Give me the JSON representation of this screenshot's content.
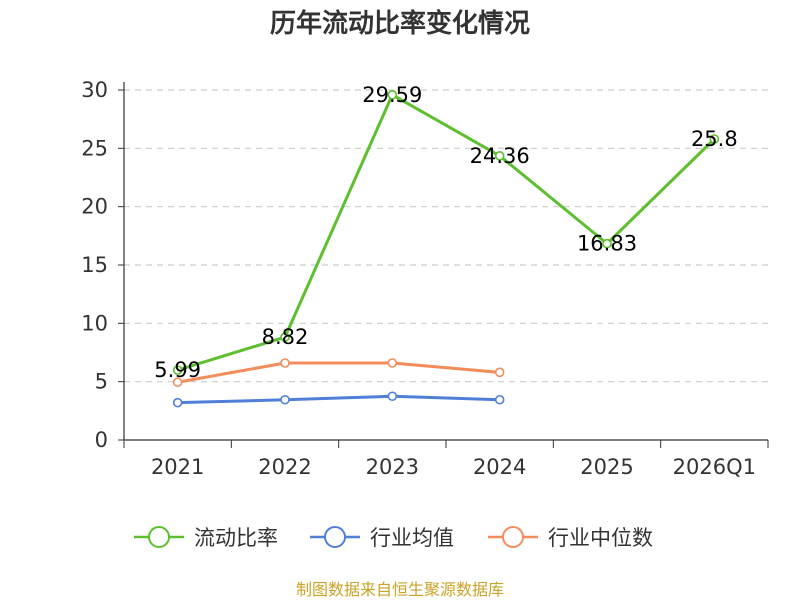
{
  "chart_data": {
    "type": "line",
    "title": "历年流动比率变化情况",
    "categories": [
      "2021",
      "2022",
      "2023",
      "2024",
      "2025",
      "2026Q1"
    ],
    "ylim": [
      0,
      30
    ],
    "yticks": [
      0,
      5,
      10,
      15,
      20,
      25,
      30
    ],
    "grid": true,
    "legend_position": "bottom",
    "series": [
      {
        "name": "流动比率",
        "color": "#5dbf2e",
        "values": [
          5.99,
          8.82,
          29.59,
          24.36,
          16.83,
          25.8
        ],
        "labels": [
          "5.99",
          "8.82",
          "29.59",
          "24.36",
          "16.83",
          "25.8"
        ]
      },
      {
        "name": "行业均值",
        "color": "#4f7fd8",
        "values": [
          3.2,
          3.45,
          3.75,
          3.45,
          null,
          null
        ]
      },
      {
        "name": "行业中位数",
        "color": "#f28c5a",
        "values": [
          4.95,
          6.6,
          6.6,
          5.8,
          null,
          null
        ]
      }
    ]
  },
  "footer": {
    "source": "制图数据来自恒生聚源数据库"
  }
}
